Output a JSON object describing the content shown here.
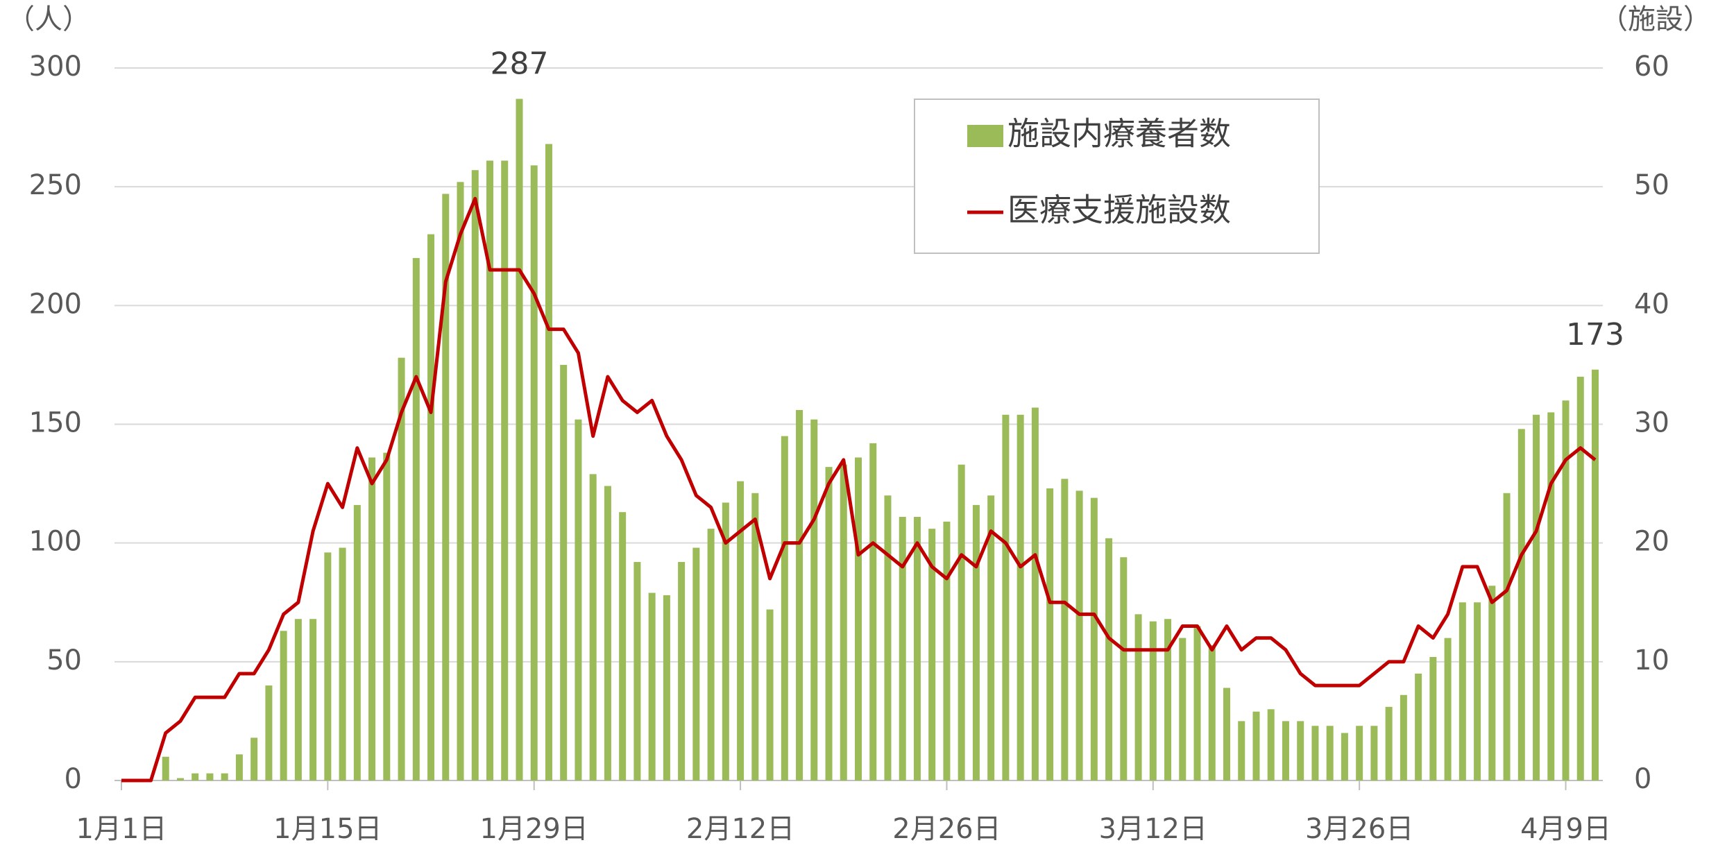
{
  "chart_data": {
    "type": "bar-line",
    "y_label": "（人）",
    "y2_label": "（施設）",
    "categories": [
      "1月1日",
      null,
      null,
      null,
      null,
      null,
      null,
      null,
      null,
      null,
      null,
      null,
      null,
      null,
      "1月15日",
      null,
      null,
      null,
      null,
      null,
      null,
      null,
      null,
      null,
      null,
      null,
      null,
      null,
      "1月29日",
      null,
      null,
      null,
      null,
      null,
      null,
      null,
      null,
      null,
      null,
      null,
      null,
      null,
      "2月12日",
      null,
      null,
      null,
      null,
      null,
      null,
      null,
      null,
      null,
      null,
      null,
      null,
      null,
      "2月26日",
      null,
      null,
      null,
      null,
      null,
      null,
      null,
      null,
      null,
      null,
      null,
      null,
      null,
      "3月12日",
      null,
      null,
      null,
      null,
      null,
      null,
      null,
      null,
      null,
      null,
      null,
      null,
      null,
      "3月26日",
      null,
      null,
      null,
      null,
      null,
      null,
      null,
      null,
      null,
      null,
      null,
      null,
      null,
      "4月9日",
      null,
      null
    ],
    "series": [
      {
        "name": "施設内療養者数",
        "color": "#9bbb59",
        "type": "bar",
        "values": [
          0,
          0,
          0,
          10,
          1,
          3,
          3,
          3,
          11,
          18,
          40,
          63,
          68,
          68,
          96,
          98,
          116,
          136,
          138,
          178,
          220,
          230,
          247,
          252,
          257,
          261,
          261,
          287,
          259,
          268,
          175,
          152,
          129,
          124,
          113,
          92,
          79,
          78,
          92,
          98,
          106,
          117,
          126,
          121,
          72,
          145,
          156,
          152,
          132,
          133,
          136,
          142,
          120,
          111,
          111,
          106,
          109,
          133,
          116,
          120,
          154,
          154,
          157,
          123,
          127,
          122,
          119,
          102,
          94,
          70,
          67,
          68,
          60,
          65,
          57,
          39,
          25,
          29,
          30,
          25,
          25,
          23,
          23,
          20,
          23,
          23,
          31,
          36,
          45,
          52,
          60,
          75,
          75,
          82,
          121,
          148,
          154,
          155,
          160,
          170,
          173
        ]
      },
      {
        "name": "医療支援施設数",
        "color": "#c00000",
        "type": "line",
        "axis": "y2",
        "values": [
          0,
          0,
          0,
          4,
          5,
          7,
          7,
          7,
          9,
          9,
          11,
          14,
          15,
          21,
          25,
          23,
          28,
          25,
          27,
          31,
          34,
          31,
          42,
          46,
          49,
          43,
          43,
          43,
          41,
          38,
          38,
          36,
          29,
          34,
          32,
          31,
          32,
          29,
          27,
          24,
          23,
          20,
          21,
          22,
          17,
          20,
          20,
          22,
          25,
          27,
          19,
          20,
          19,
          18,
          20,
          18,
          17,
          19,
          18,
          21,
          20,
          18,
          19,
          15,
          15,
          14,
          14,
          12,
          11,
          11,
          11,
          11,
          13,
          13,
          11,
          13,
          11,
          12,
          12,
          11,
          9,
          8,
          8,
          8,
          8,
          9,
          10,
          10,
          13,
          12,
          14,
          18,
          18,
          15,
          16,
          19,
          21,
          25,
          27,
          28,
          27
        ]
      }
    ],
    "ylim": [
      0,
      300
    ],
    "yticks": [
      0,
      50,
      100,
      150,
      200,
      250,
      300
    ],
    "y2lim": [
      0,
      60
    ],
    "y2ticks": [
      0,
      10,
      20,
      30,
      40,
      50,
      60
    ],
    "grid": true,
    "legend": "top-right"
  }
}
